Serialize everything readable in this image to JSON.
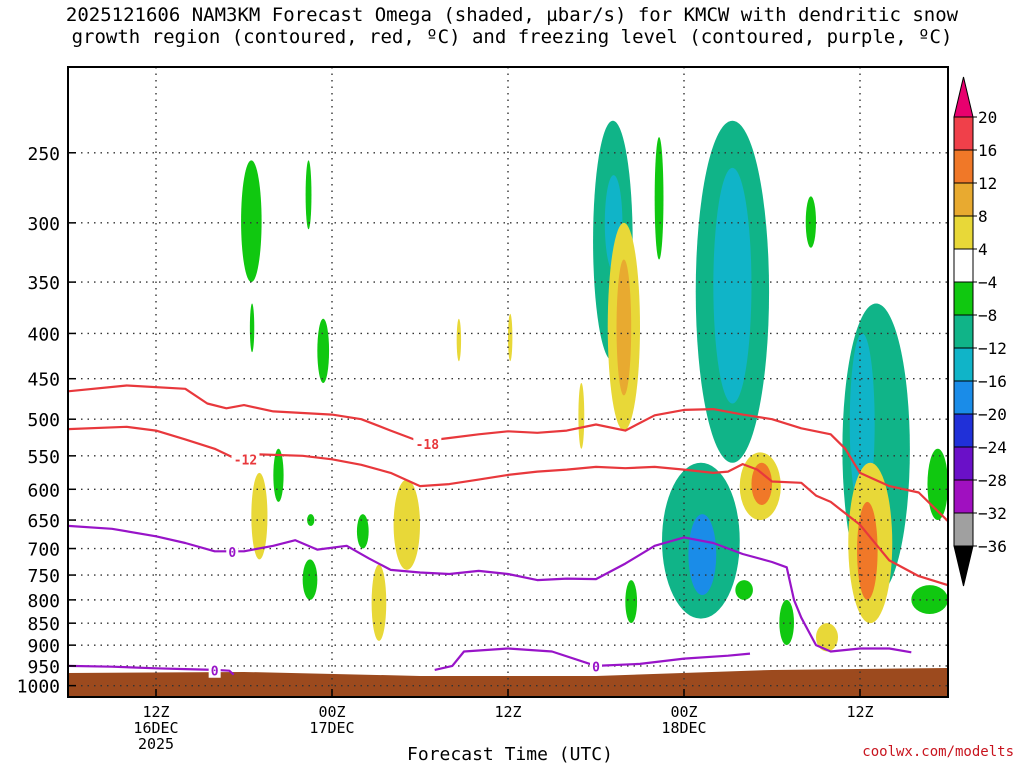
{
  "title_line1": "2025121606 NAM3KM Forecast Omega (shaded, µbar/s) for KMCW with dendritic snow",
  "title_line2": "growth region (contoured, red, ºC) and freezing level (contoured, purple, ºC)",
  "credit": "coolwx.com/modelts",
  "chart_data": {
    "type": "heatmap",
    "xlabel": "Forecast Time (UTC)",
    "x_ticks": [
      {
        "hours": 6,
        "lines": [
          "12Z",
          "16DEC",
          "2025"
        ]
      },
      {
        "hours": 18,
        "lines": [
          "00Z",
          "17DEC"
        ]
      },
      {
        "hours": 30,
        "lines": [
          "12Z"
        ]
      },
      {
        "hours": 42,
        "lines": [
          "00Z",
          "18DEC"
        ]
      },
      {
        "hours": 54,
        "lines": [
          "12Z"
        ]
      }
    ],
    "x_range_hours": [
      0,
      60
    ],
    "y_axis": {
      "scale": "pressure_hPa",
      "range": [
        200,
        1030
      ],
      "ticks": [
        250,
        300,
        350,
        400,
        450,
        500,
        550,
        600,
        650,
        700,
        750,
        800,
        850,
        900,
        950,
        1000
      ]
    },
    "grid": true,
    "colorbar": {
      "labels": [
        "20",
        "16",
        "12",
        "8",
        "4",
        "−4",
        "−8",
        "−12",
        "−16",
        "−20",
        "−24",
        "−28",
        "−32",
        "−36"
      ],
      "bins": [
        {
          "color": "#e8006e"
        },
        {
          "color": "#f0404a"
        },
        {
          "color": "#f07828"
        },
        {
          "color": "#e8aa30"
        },
        {
          "color": "#e8d838"
        },
        {
          "color": "#ffffff"
        },
        {
          "color": "#10c810"
        },
        {
          "color": "#10b488"
        },
        {
          "color": "#10b4c8"
        },
        {
          "color": "#1a8ce8"
        },
        {
          "color": "#2030d8"
        },
        {
          "color": "#6a10c8"
        },
        {
          "color": "#a010c0"
        },
        {
          "color": "#a0a0a0"
        },
        {
          "color": "#000000"
        }
      ]
    },
    "ground_color": "#9c4a1e",
    "omega_regions": [
      {
        "value": -6,
        "t0": 11.8,
        "t1": 13.2,
        "p0": 255,
        "p1": 350
      },
      {
        "value": -6,
        "t0": 12.4,
        "t1": 12.7,
        "p0": 370,
        "p1": 420
      },
      {
        "value": -6,
        "t0": 16.2,
        "t1": 16.6,
        "p0": 255,
        "p1": 305
      },
      {
        "value": -6,
        "t0": 17.0,
        "t1": 17.8,
        "p0": 385,
        "p1": 455
      },
      {
        "value": 6,
        "t0": 12.5,
        "t1": 13.6,
        "p0": 575,
        "p1": 720
      },
      {
        "value": -6,
        "t0": 14.0,
        "t1": 14.7,
        "p0": 540,
        "p1": 620
      },
      {
        "value": -6,
        "t0": 16.3,
        "t1": 16.8,
        "p0": 640,
        "p1": 660
      },
      {
        "value": -6,
        "t0": 16.0,
        "t1": 17.0,
        "p0": 720,
        "p1": 800
      },
      {
        "value": 6,
        "t0": 22.2,
        "t1": 24.0,
        "p0": 585,
        "p1": 740
      },
      {
        "value": 6,
        "t0": 20.7,
        "t1": 21.7,
        "p0": 730,
        "p1": 890
      },
      {
        "value": -6,
        "t0": 19.7,
        "t1": 20.5,
        "p0": 640,
        "p1": 700
      },
      {
        "value": 6,
        "t0": 26.5,
        "t1": 26.8,
        "p0": 385,
        "p1": 430
      },
      {
        "value": 6,
        "t0": 30.0,
        "t1": 30.3,
        "p0": 380,
        "p1": 430
      },
      {
        "value": 6,
        "t0": 34.8,
        "t1": 35.2,
        "p0": 455,
        "p1": 540
      },
      {
        "value": -8,
        "t0": 35.8,
        "t1": 38.5,
        "p0": 230,
        "p1": 430
      },
      {
        "value": -12,
        "t0": 36.6,
        "t1": 37.8,
        "p0": 265,
        "p1": 340
      },
      {
        "value": 6,
        "t0": 36.8,
        "t1": 39.0,
        "p0": 300,
        "p1": 515
      },
      {
        "value": 10,
        "t0": 37.4,
        "t1": 38.4,
        "p0": 330,
        "p1": 470
      },
      {
        "value": -6,
        "t0": 40.0,
        "t1": 40.6,
        "p0": 240,
        "p1": 330
      },
      {
        "value": -6,
        "t0": 38.0,
        "t1": 38.8,
        "p0": 760,
        "p1": 850
      },
      {
        "value": -8,
        "t0": 40.5,
        "t1": 45.8,
        "p0": 560,
        "p1": 840
      },
      {
        "value": -16,
        "t0": 42.3,
        "t1": 44.2,
        "p0": 640,
        "p1": 790
      },
      {
        "value": -8,
        "t0": 42.8,
        "t1": 47.8,
        "p0": 230,
        "p1": 560
      },
      {
        "value": -12,
        "t0": 44.0,
        "t1": 46.6,
        "p0": 260,
        "p1": 480
      },
      {
        "value": 6,
        "t0": 45.8,
        "t1": 48.6,
        "p0": 545,
        "p1": 650
      },
      {
        "value": 12,
        "t0": 46.6,
        "t1": 48.0,
        "p0": 560,
        "p1": 625
      },
      {
        "value": -6,
        "t0": 45.5,
        "t1": 46.7,
        "p0": 760,
        "p1": 800
      },
      {
        "value": -6,
        "t0": 48.5,
        "t1": 49.5,
        "p0": 800,
        "p1": 900
      },
      {
        "value": -6,
        "t0": 50.3,
        "t1": 51.0,
        "p0": 280,
        "p1": 320
      },
      {
        "value": -8,
        "t0": 52.8,
        "t1": 57.4,
        "p0": 370,
        "p1": 790
      },
      {
        "value": -12,
        "t0": 53.3,
        "t1": 55.0,
        "p0": 400,
        "p1": 640
      },
      {
        "value": 6,
        "t0": 53.2,
        "t1": 56.2,
        "p0": 560,
        "p1": 850
      },
      {
        "value": 12,
        "t0": 53.8,
        "t1": 55.2,
        "p0": 620,
        "p1": 800
      },
      {
        "value": 6,
        "t0": 51.0,
        "t1": 52.5,
        "p0": 850,
        "p1": 915
      },
      {
        "value": -6,
        "t0": 58.6,
        "t1": 60.0,
        "p0": 540,
        "p1": 650
      },
      {
        "value": -6,
        "t0": 57.5,
        "t1": 60.0,
        "p0": 770,
        "p1": 830
      }
    ],
    "contours": [
      {
        "label": "-18",
        "color": "#e8383c",
        "label_at": [
          24.5,
          533
        ],
        "points": [
          [
            0,
            465
          ],
          [
            4,
            458
          ],
          [
            8,
            462
          ],
          [
            9.5,
            480
          ],
          [
            10.8,
            486
          ],
          [
            12,
            482
          ],
          [
            14,
            490
          ],
          [
            16,
            492
          ],
          [
            18,
            494
          ],
          [
            20,
            500
          ],
          [
            22,
            515
          ],
          [
            24,
            530
          ],
          [
            26,
            525
          ],
          [
            28,
            520
          ],
          [
            30,
            516
          ],
          [
            32,
            518
          ],
          [
            34,
            515
          ],
          [
            36,
            507
          ],
          [
            38,
            515
          ],
          [
            40,
            495
          ],
          [
            42,
            488
          ],
          [
            44,
            487
          ],
          [
            46,
            494
          ],
          [
            48,
            500
          ],
          [
            50,
            512
          ],
          [
            52,
            520
          ],
          [
            53,
            540
          ],
          [
            54,
            575
          ],
          [
            56,
            595
          ],
          [
            58,
            605
          ],
          [
            60,
            652
          ]
        ]
      },
      {
        "label": "-12",
        "color": "#e8383c",
        "label_at": [
          12.1,
          555
        ],
        "points": [
          [
            0,
            513
          ],
          [
            4,
            510
          ],
          [
            6,
            515
          ],
          [
            8,
            527
          ],
          [
            10,
            540
          ],
          [
            11.5,
            555
          ],
          [
            13,
            548
          ],
          [
            16,
            550
          ],
          [
            18,
            555
          ],
          [
            20,
            563
          ],
          [
            22,
            575
          ],
          [
            24,
            595
          ],
          [
            26,
            592
          ],
          [
            28,
            585
          ],
          [
            30,
            578
          ],
          [
            32,
            573
          ],
          [
            34,
            570
          ],
          [
            36,
            566
          ],
          [
            38,
            568
          ],
          [
            40,
            566
          ],
          [
            42,
            570
          ],
          [
            44,
            575
          ],
          [
            45,
            573
          ],
          [
            46,
            562
          ],
          [
            47,
            570
          ],
          [
            48,
            588
          ],
          [
            50,
            590
          ],
          [
            51,
            610
          ],
          [
            52,
            620
          ],
          [
            54,
            658
          ],
          [
            56,
            722
          ],
          [
            58,
            752
          ],
          [
            60,
            770
          ]
        ]
      },
      {
        "label": "0",
        "color": "#9814c8",
        "label_at": [
          11.2,
          706
        ],
        "points": [
          [
            0,
            660
          ],
          [
            3,
            665
          ],
          [
            6,
            678
          ],
          [
            8,
            690
          ],
          [
            10,
            705
          ],
          [
            12,
            705
          ],
          [
            14,
            695
          ],
          [
            15.5,
            685
          ],
          [
            17,
            702
          ],
          [
            19,
            695
          ],
          [
            20.5,
            718
          ],
          [
            22,
            740
          ],
          [
            24,
            745
          ],
          [
            26,
            748
          ],
          [
            28,
            742
          ],
          [
            30,
            748
          ],
          [
            32,
            760
          ],
          [
            34,
            757
          ],
          [
            36,
            758
          ],
          [
            38,
            728
          ],
          [
            40,
            695
          ],
          [
            42,
            680
          ],
          [
            44,
            690
          ],
          [
            46,
            710
          ],
          [
            48,
            725
          ],
          [
            49,
            735
          ],
          [
            49.5,
            800
          ],
          [
            50,
            838
          ],
          [
            51,
            900
          ],
          [
            52,
            915
          ],
          [
            54,
            908
          ],
          [
            56,
            908
          ],
          [
            57.5,
            917
          ]
        ]
      },
      {
        "label": "0",
        "color": "#9814c8",
        "label_at": [
          10.0,
          962
        ],
        "points": [
          [
            0,
            950
          ],
          [
            3,
            952
          ],
          [
            6,
            956
          ],
          [
            8,
            958
          ],
          [
            10,
            960
          ],
          [
            11,
            962
          ],
          [
            11.3,
            972
          ]
        ]
      },
      {
        "label": "0",
        "color": "#9814c8",
        "label_at": [
          36.0,
          952
        ],
        "points": [
          [
            25,
            960
          ],
          [
            26.2,
            950
          ],
          [
            27,
            915
          ],
          [
            30,
            908
          ],
          [
            33,
            915
          ],
          [
            36,
            950
          ],
          [
            39,
            945
          ],
          [
            42,
            932
          ],
          [
            45,
            925
          ],
          [
            46.5,
            920
          ]
        ]
      }
    ]
  }
}
